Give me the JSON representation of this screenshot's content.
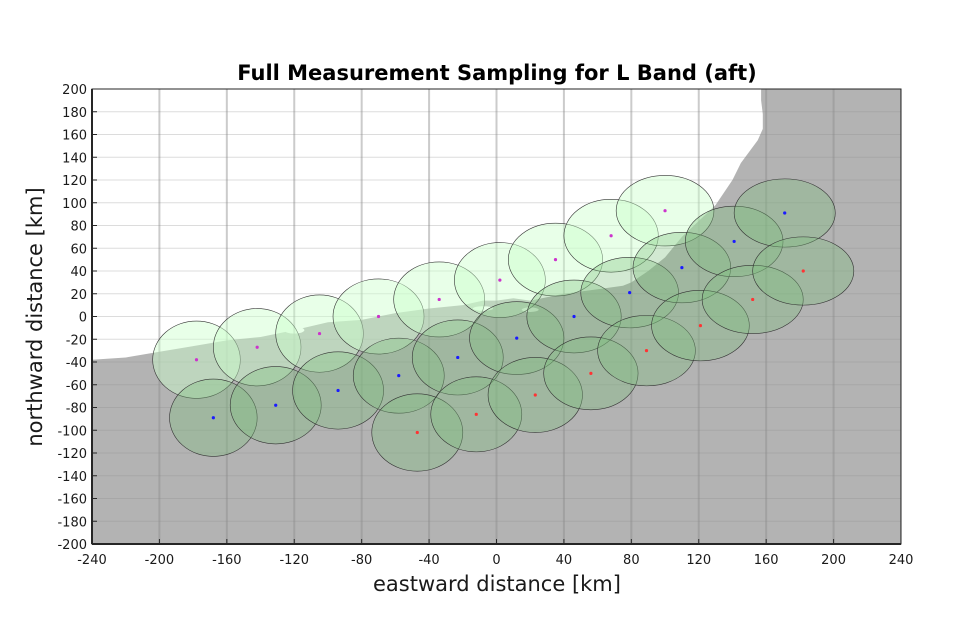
{
  "chart_data": {
    "type": "scatter",
    "title": "Full Measurement Sampling for L Band (aft)",
    "xlabel": "eastward distance [km]",
    "ylabel": "northward distance [km]",
    "xlim": [
      -240,
      240
    ],
    "ylim": [
      -200,
      200
    ],
    "x_ticks": [
      -240,
      -200,
      -160,
      -120,
      -80,
      -40,
      0,
      40,
      80,
      120,
      160,
      200,
      240
    ],
    "y_ticks": [
      -200,
      -180,
      -160,
      -140,
      -120,
      -100,
      -80,
      -60,
      -40,
      -20,
      0,
      20,
      40,
      60,
      80,
      100,
      120,
      140,
      160,
      180,
      200
    ],
    "grid": true,
    "colors": {
      "land": "#b3b3b3",
      "sea": "#ffffff",
      "grid": "#8c8c8c",
      "footprint_fill_light": "#ccffcc",
      "footprint_fill_dark": "#7fbf7f",
      "footprint_edge": "#333333",
      "series_magenta": "#cc33cc",
      "series_blue": "#1a1aff",
      "series_red": "#ff3333"
    },
    "series": [
      {
        "color": "#cc33cc",
        "points": [
          {
            "x": -178,
            "y": -38
          },
          {
            "x": -142,
            "y": -27
          },
          {
            "x": -105,
            "y": -15
          },
          {
            "x": -70,
            "y": 0
          },
          {
            "x": -34,
            "y": 15
          },
          {
            "x": 2,
            "y": 32
          },
          {
            "x": 35,
            "y": 50
          },
          {
            "x": 68,
            "y": 71
          },
          {
            "x": 100,
            "y": 93
          }
        ]
      },
      {
        "color": "#1a1aff",
        "points": [
          {
            "x": -168,
            "y": -89
          },
          {
            "x": -131,
            "y": -78
          },
          {
            "x": -94,
            "y": -65
          },
          {
            "x": -58,
            "y": -52
          },
          {
            "x": -23,
            "y": -36
          },
          {
            "x": 12,
            "y": -19
          },
          {
            "x": 46,
            "y": 0
          },
          {
            "x": 79,
            "y": 21
          },
          {
            "x": 110,
            "y": 43
          },
          {
            "x": 141,
            "y": 66
          },
          {
            "x": 171,
            "y": 91
          }
        ]
      },
      {
        "color": "#ff3333",
        "points": [
          {
            "x": -47,
            "y": -102
          },
          {
            "x": -12,
            "y": -86
          },
          {
            "x": 23,
            "y": -69
          },
          {
            "x": 56,
            "y": -50
          },
          {
            "x": 89,
            "y": -30
          },
          {
            "x": 121,
            "y": -8
          },
          {
            "x": 152,
            "y": 15
          },
          {
            "x": 182,
            "y": 40
          }
        ]
      }
    ],
    "footprints": [
      {
        "cx": -178,
        "cy": -38,
        "rx": 26,
        "ry": 34,
        "light": true
      },
      {
        "cx": -142,
        "cy": -27,
        "rx": 26,
        "ry": 34,
        "light": true
      },
      {
        "cx": -105,
        "cy": -15,
        "rx": 26,
        "ry": 34,
        "light": true
      },
      {
        "cx": -70,
        "cy": 0,
        "rx": 27,
        "ry": 33,
        "light": true
      },
      {
        "cx": -34,
        "cy": 15,
        "rx": 27,
        "ry": 33,
        "light": true
      },
      {
        "cx": 2,
        "cy": 32,
        "rx": 27,
        "ry": 33,
        "light": true
      },
      {
        "cx": 35,
        "cy": 50,
        "rx": 28,
        "ry": 32,
        "light": true
      },
      {
        "cx": 68,
        "cy": 71,
        "rx": 28,
        "ry": 32,
        "light": true
      },
      {
        "cx": 100,
        "cy": 93,
        "rx": 29,
        "ry": 31,
        "light": true
      },
      {
        "cx": -168,
        "cy": -89,
        "rx": 26,
        "ry": 34,
        "light": false
      },
      {
        "cx": -131,
        "cy": -78,
        "rx": 27,
        "ry": 34,
        "light": false
      },
      {
        "cx": -94,
        "cy": -65,
        "rx": 27,
        "ry": 34,
        "light": false
      },
      {
        "cx": -58,
        "cy": -52,
        "rx": 27,
        "ry": 33,
        "light": false
      },
      {
        "cx": -23,
        "cy": -36,
        "rx": 27,
        "ry": 33,
        "light": false
      },
      {
        "cx": 12,
        "cy": -19,
        "rx": 28,
        "ry": 32,
        "light": false
      },
      {
        "cx": 46,
        "cy": 0,
        "rx": 28,
        "ry": 32,
        "light": false
      },
      {
        "cx": 79,
        "cy": 21,
        "rx": 29,
        "ry": 31,
        "light": false
      },
      {
        "cx": 110,
        "cy": 43,
        "rx": 29,
        "ry": 31,
        "light": false
      },
      {
        "cx": 141,
        "cy": 66,
        "rx": 29,
        "ry": 31,
        "light": false
      },
      {
        "cx": 171,
        "cy": 91,
        "rx": 30,
        "ry": 30,
        "light": false
      },
      {
        "cx": -47,
        "cy": -102,
        "rx": 27,
        "ry": 34,
        "light": false
      },
      {
        "cx": -12,
        "cy": -86,
        "rx": 27,
        "ry": 33,
        "light": false
      },
      {
        "cx": 23,
        "cy": -69,
        "rx": 28,
        "ry": 33,
        "light": false
      },
      {
        "cx": 56,
        "cy": -50,
        "rx": 28,
        "ry": 32,
        "light": false
      },
      {
        "cx": 89,
        "cy": -30,
        "rx": 29,
        "ry": 31,
        "light": false
      },
      {
        "cx": 121,
        "cy": -8,
        "rx": 29,
        "ry": 31,
        "light": false
      },
      {
        "cx": 152,
        "cy": 15,
        "rx": 30,
        "ry": 30,
        "light": false
      },
      {
        "cx": 182,
        "cy": 40,
        "rx": 30,
        "ry": 30,
        "light": false
      }
    ],
    "coastline": [
      [
        -240,
        -38
      ],
      [
        -220,
        -36
      ],
      [
        -200,
        -31
      ],
      [
        -180,
        -26
      ],
      [
        -160,
        -21
      ],
      [
        -140,
        -18
      ],
      [
        -120,
        -12
      ],
      [
        -100,
        -5
      ],
      [
        -80,
        -3
      ],
      [
        -60,
        3
      ],
      [
        -40,
        7
      ],
      [
        -20,
        10
      ],
      [
        -8,
        14
      ],
      [
        0,
        14
      ],
      [
        10,
        16
      ],
      [
        20,
        14
      ],
      [
        40,
        20
      ],
      [
        60,
        24
      ],
      [
        75,
        27
      ],
      [
        80,
        30
      ],
      [
        90,
        40
      ],
      [
        100,
        52
      ],
      [
        110,
        70
      ],
      [
        120,
        84
      ],
      [
        130,
        98
      ],
      [
        140,
        120
      ],
      [
        145,
        135
      ],
      [
        150,
        145
      ],
      [
        155,
        155
      ],
      [
        158,
        165
      ],
      [
        158,
        178
      ],
      [
        157,
        190
      ],
      [
        157,
        200
      ]
    ],
    "islands": [
      {
        "cx": -8,
        "cy": 7,
        "rx": 6,
        "ry": 2
      },
      {
        "cx": 20,
        "cy": 6,
        "rx": 5,
        "ry": 2
      },
      {
        "cx": -120,
        "cy": -12,
        "rx": 6,
        "ry": 3
      }
    ]
  }
}
